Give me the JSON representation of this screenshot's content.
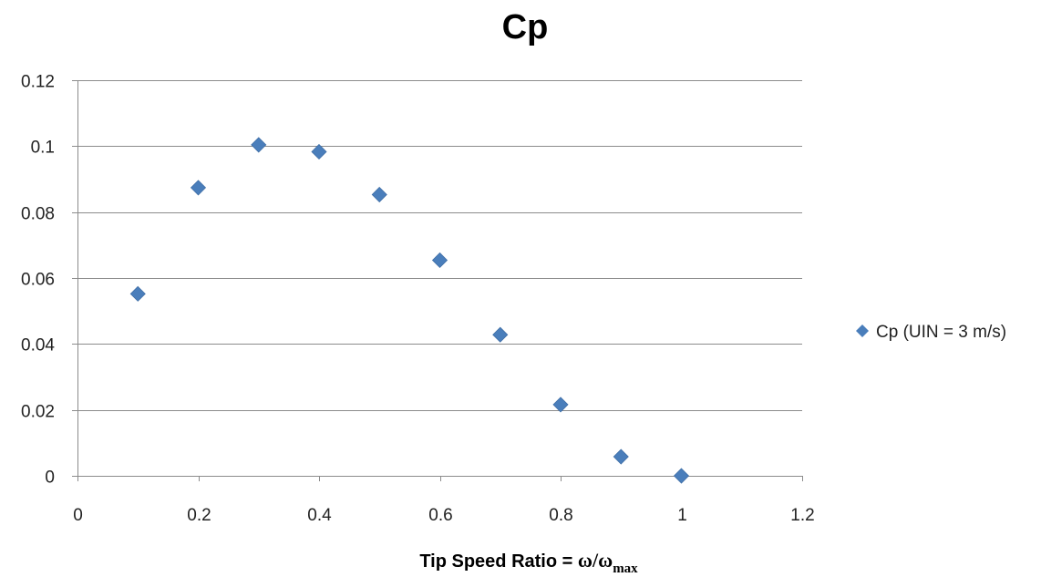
{
  "chart_data": {
    "type": "scatter",
    "title": "Cp",
    "xlabel": {
      "prefix": "Tip Speed Ratio = ",
      "omega": "ω",
      "slash": "/",
      "omega_max": "ω",
      "subscript": "max"
    },
    "ylabel": "",
    "xlim": [
      0,
      1.2
    ],
    "ylim": [
      0,
      0.12
    ],
    "x_ticks": [
      0,
      0.2,
      0.4,
      0.6,
      0.8,
      1,
      1.2
    ],
    "x_tick_labels": [
      "0",
      "0.2",
      "0.4",
      "0.6",
      "0.8",
      "1",
      "1.2"
    ],
    "y_ticks": [
      0,
      0.02,
      0.04,
      0.06,
      0.08,
      0.1,
      0.12
    ],
    "y_tick_labels": [
      "0",
      "0.02",
      "0.04",
      "0.06",
      "0.08",
      "0.1",
      "0.12"
    ],
    "grid": "horizontal",
    "legend_position": "right",
    "series": [
      {
        "name": "Cp (UIN = 3 m/s)",
        "color": "#4a7ebb",
        "marker": "diamond",
        "x": [
          0.1,
          0.2,
          0.3,
          0.4,
          0.5,
          0.6,
          0.7,
          0.8,
          0.9,
          1.0
        ],
        "y": [
          0.0552,
          0.0874,
          0.1004,
          0.0983,
          0.0853,
          0.0654,
          0.0428,
          0.0216,
          0.0058,
          0.0
        ]
      }
    ]
  }
}
